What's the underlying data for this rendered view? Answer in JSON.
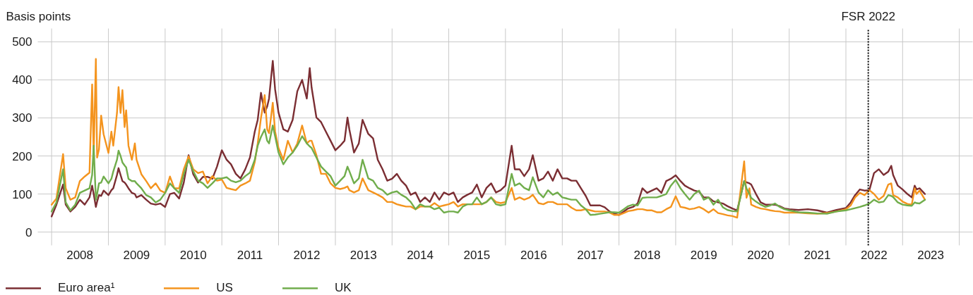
{
  "chart_data": {
    "type": "line",
    "ylabel": "Basis points",
    "x": [
      "2008-01-01",
      "2008-02-01",
      "2008-03-15",
      "2008-04-01",
      "2008-05-01",
      "2008-06-01",
      "2008-07-01",
      "2008-08-01",
      "2008-09-01",
      "2008-09-18",
      "2008-09-28",
      "2008-10-12",
      "2008-10-20",
      "2008-11-01",
      "2008-11-15",
      "2008-12-01",
      "2009-01-01",
      "2009-01-20",
      "2009-02-01",
      "2009-02-25",
      "2009-03-07",
      "2009-03-20",
      "2009-04-01",
      "2009-04-15",
      "2009-04-25",
      "2009-05-10",
      "2009-06-01",
      "2009-06-20",
      "2009-07-01",
      "2009-08-01",
      "2009-09-01",
      "2009-10-01",
      "2009-11-01",
      "2009-12-01",
      "2010-01-01",
      "2010-02-01",
      "2010-03-01",
      "2010-04-01",
      "2010-05-01",
      "2010-06-01",
      "2010-07-01",
      "2010-08-01",
      "2010-09-01",
      "2010-10-01",
      "2010-11-01",
      "2010-12-01",
      "2011-01-01",
      "2011-02-01",
      "2011-03-01",
      "2011-04-01",
      "2011-05-01",
      "2011-06-01",
      "2011-07-01",
      "2011-08-01",
      "2011-08-20",
      "2011-09-10",
      "2011-10-04",
      "2011-10-20",
      "2011-11-01",
      "2011-11-25",
      "2011-12-10",
      "2012-01-01",
      "2012-02-01",
      "2012-03-01",
      "2012-04-01",
      "2012-05-01",
      "2012-06-01",
      "2012-07-01",
      "2012-07-20",
      "2012-08-01",
      "2012-09-01",
      "2012-10-01",
      "2012-11-01",
      "2012-12-01",
      "2013-01-01",
      "2013-02-01",
      "2013-03-01",
      "2013-03-20",
      "2013-04-01",
      "2013-05-01",
      "2013-06-01",
      "2013-06-25",
      "2013-08-01",
      "2013-09-01",
      "2013-10-01",
      "2013-11-01",
      "2013-12-01",
      "2014-01-01",
      "2014-02-01",
      "2014-03-01",
      "2014-04-01",
      "2014-05-01",
      "2014-06-01",
      "2014-07-01",
      "2014-08-01",
      "2014-09-01",
      "2014-10-01",
      "2014-11-01",
      "2014-12-01",
      "2015-01-01",
      "2015-02-01",
      "2015-03-01",
      "2015-04-01",
      "2015-05-01",
      "2015-06-01",
      "2015-07-01",
      "2015-08-01",
      "2015-09-01",
      "2015-10-01",
      "2015-11-01",
      "2015-12-01",
      "2016-01-01",
      "2016-02-10",
      "2016-03-01",
      "2016-04-01",
      "2016-05-01",
      "2016-06-01",
      "2016-06-25",
      "2016-08-01",
      "2016-09-01",
      "2016-10-01",
      "2016-11-01",
      "2016-12-01",
      "2017-01-01",
      "2017-02-01",
      "2017-03-01",
      "2017-04-01",
      "2017-05-01",
      "2017-06-01",
      "2017-07-01",
      "2017-08-01",
      "2017-09-01",
      "2017-10-01",
      "2017-11-01",
      "2017-12-01",
      "2018-01-01",
      "2018-02-01",
      "2018-03-01",
      "2018-04-01",
      "2018-05-01",
      "2018-06-01",
      "2018-07-01",
      "2018-08-01",
      "2018-09-01",
      "2018-10-01",
      "2018-11-01",
      "2018-12-01",
      "2019-01-01",
      "2019-02-01",
      "2019-03-01",
      "2019-04-01",
      "2019-05-01",
      "2019-06-01",
      "2019-07-01",
      "2019-08-01",
      "2019-09-01",
      "2019-10-01",
      "2019-11-01",
      "2019-12-01",
      "2020-01-01",
      "2020-02-01",
      "2020-03-17",
      "2020-04-01",
      "2020-04-20",
      "2020-05-01",
      "2020-06-01",
      "2020-07-01",
      "2020-08-01",
      "2020-09-01",
      "2020-10-01",
      "2020-11-01",
      "2020-12-01",
      "2021-01-01",
      "2021-03-01",
      "2021-05-01",
      "2021-07-01",
      "2021-09-01",
      "2021-11-01",
      "2022-01-01",
      "2022-02-01",
      "2022-03-01",
      "2022-04-01",
      "2022-05-01",
      "2022-06-01",
      "2022-07-01",
      "2022-08-01",
      "2022-09-01",
      "2022-10-01",
      "2022-10-20",
      "2022-11-01",
      "2022-12-01",
      "2023-01-01",
      "2023-02-01",
      "2023-03-01",
      "2023-03-20",
      "2023-04-01",
      "2023-04-20",
      "2023-05-25"
    ],
    "xlim": [
      "2007-10-04",
      "2024-03-27"
    ],
    "xticks": [
      {
        "value": "2008-01-01",
        "label": null
      },
      {
        "value": "2008-07-01",
        "label": "2008"
      },
      {
        "value": "2009-01-01",
        "label": null
      },
      {
        "value": "2009-07-01",
        "label": "2009"
      },
      {
        "value": "2010-01-01",
        "label": null
      },
      {
        "value": "2010-07-01",
        "label": "2010"
      },
      {
        "value": "2011-01-01",
        "label": null
      },
      {
        "value": "2011-07-01",
        "label": "2011"
      },
      {
        "value": "2012-01-01",
        "label": null
      },
      {
        "value": "2012-07-01",
        "label": "2012"
      },
      {
        "value": "2013-01-01",
        "label": null
      },
      {
        "value": "2013-07-01",
        "label": "2013"
      },
      {
        "value": "2014-01-01",
        "label": null
      },
      {
        "value": "2014-07-01",
        "label": "2014"
      },
      {
        "value": "2015-01-01",
        "label": null
      },
      {
        "value": "2015-07-01",
        "label": "2015"
      },
      {
        "value": "2016-01-01",
        "label": null
      },
      {
        "value": "2016-07-01",
        "label": "2016"
      },
      {
        "value": "2017-01-01",
        "label": null
      },
      {
        "value": "2017-07-01",
        "label": "2017"
      },
      {
        "value": "2018-01-01",
        "label": null
      },
      {
        "value": "2018-07-01",
        "label": "2018"
      },
      {
        "value": "2019-01-01",
        "label": null
      },
      {
        "value": "2019-07-01",
        "label": "2019"
      },
      {
        "value": "2020-01-01",
        "label": null
      },
      {
        "value": "2020-07-01",
        "label": "2020"
      },
      {
        "value": "2021-01-01",
        "label": null
      },
      {
        "value": "2021-07-01",
        "label": "2021"
      },
      {
        "value": "2022-01-01",
        "label": null
      },
      {
        "value": "2022-07-01",
        "label": "2022"
      },
      {
        "value": "2023-01-01",
        "label": null
      },
      {
        "value": "2023-07-01",
        "label": "2023"
      },
      {
        "value": "2024-01-01",
        "label": null
      }
    ],
    "ylim": [
      -35,
      535
    ],
    "yticks": [
      0,
      100,
      200,
      300,
      400,
      500
    ],
    "grid": true,
    "legend": "bottom",
    "ref_lines": [
      {
        "axis": "x",
        "value": "2022-05-25",
        "label": "FSR 2022",
        "color": "#000000",
        "line_style": "dotted"
      }
    ],
    "series": [
      {
        "name": "Euro area¹",
        "color": "#7b2e33",
        "values": [
          41,
          72,
          125,
          72,
          54,
          66,
          85,
          72,
          91,
          122,
          100,
          66,
          80,
          97,
          95,
          109,
          97,
          110,
          115,
          150,
          168,
          150,
          134,
          130,
          125,
          115,
          103,
          100,
          91,
          97,
          85,
          75,
          72,
          75,
          66,
          100,
          103,
          88,
          130,
          202,
          152,
          130,
          145,
          145,
          140,
          172,
          215,
          190,
          178,
          153,
          141,
          165,
          196,
          264,
          295,
          366,
          314,
          330,
          351,
          450,
          375,
          314,
          270,
          264,
          295,
          370,
          400,
          351,
          431,
          380,
          301,
          289,
          264,
          240,
          215,
          227,
          240,
          301,
          270,
          209,
          233,
          295,
          258,
          246,
          190,
          165,
          135,
          140,
          153,
          135,
          122,
          98,
          104,
          79,
          91,
          79,
          104,
          85,
          104,
          98,
          104,
          79,
          91,
          98,
          104,
          125,
          91,
          116,
          128,
          104,
          110,
          122,
          227,
          165,
          165,
          147,
          165,
          202,
          135,
          141,
          159,
          135,
          165,
          141,
          141,
          135,
          135,
          115,
          95,
          70,
          70,
          70,
          65,
          54,
          48,
          45,
          54,
          62,
          66,
          75,
          115,
          103,
          109,
          115,
          103,
          134,
          140,
          149,
          134,
          122,
          115,
          109,
          106,
          91,
          91,
          81,
          78,
          75,
          68,
          62,
          57,
          134,
          131,
          128,
          125,
          100,
          78,
          72,
          72,
          72,
          68,
          62,
          60,
          58,
          60,
          57,
          51,
          58,
          63,
          78,
          97,
          112,
          109,
          110,
          155,
          165,
          150,
          159,
          174,
          150,
          122,
          112,
          100,
          91,
          122,
          112,
          115,
          100
        ]
      },
      {
        "name": "US",
        "color": "#f4941e",
        "values": [
          72,
          88,
          205,
          115,
          85,
          91,
          134,
          146,
          156,
          388,
          202,
          455,
          196,
          217,
          306,
          257,
          208,
          264,
          227,
          313,
          381,
          313,
          373,
          276,
          320,
          227,
          190,
          233,
          190,
          152,
          134,
          115,
          128,
          109,
          103,
          146,
          115,
          115,
          165,
          199,
          165,
          155,
          159,
          128,
          147,
          135,
          138,
          116,
          113,
          110,
          122,
          128,
          135,
          184,
          233,
          300,
          360,
          270,
          260,
          340,
          264,
          221,
          190,
          240,
          209,
          233,
          280,
          233,
          240,
          240,
          202,
          153,
          153,
          128,
          116,
          113,
          116,
          120,
          110,
          104,
          110,
          141,
          110,
          104,
          98,
          91,
          79,
          79,
          73,
          70,
          67,
          67,
          60,
          67,
          67,
          67,
          76,
          67,
          70,
          73,
          79,
          67,
          73,
          73,
          73,
          73,
          73,
          79,
          91,
          79,
          76,
          79,
          116,
          85,
          91,
          85,
          90,
          98,
          76,
          73,
          79,
          79,
          73,
          73,
          73,
          64,
          57,
          57,
          60,
          57,
          54,
          54,
          54,
          51,
          45,
          45,
          50,
          55,
          57,
          60,
          60,
          57,
          57,
          52,
          52,
          60,
          66,
          94,
          66,
          64,
          60,
          62,
          66,
          60,
          51,
          60,
          50,
          47,
          44,
          42,
          38,
          186,
          90,
          115,
          72,
          66,
          62,
          60,
          57,
          55,
          54,
          51,
          51,
          51,
          49,
          48,
          50,
          54,
          60,
          70,
          91,
          103,
          97,
          110,
          100,
          85,
          95,
          125,
          128,
          97,
          91,
          80,
          74,
          72,
          115,
          100,
          109,
          85
        ]
      },
      {
        "name": "UK",
        "color": "#70ad4c",
        "values": [
          54,
          78,
          165,
          78,
          57,
          72,
          103,
          109,
          115,
          150,
          227,
          85,
          100,
          128,
          130,
          146,
          128,
          140,
          159,
          190,
          214,
          200,
          183,
          175,
          170,
          140,
          134,
          134,
          128,
          115,
          97,
          91,
          78,
          85,
          103,
          128,
          115,
          103,
          152,
          190,
          160,
          135,
          128,
          116,
          128,
          141,
          141,
          144,
          135,
          131,
          135,
          147,
          156,
          190,
          227,
          250,
          270,
          240,
          233,
          280,
          252,
          209,
          178,
          196,
          209,
          227,
          252,
          233,
          225,
          221,
          196,
          172,
          159,
          147,
          122,
          135,
          147,
          172,
          160,
          128,
          141,
          190,
          141,
          135,
          116,
          110,
          98,
          104,
          107,
          98,
          91,
          79,
          60,
          73,
          67,
          67,
          60,
          64,
          51,
          54,
          54,
          51,
          67,
          73,
          73,
          91,
          73,
          79,
          91,
          73,
          70,
          73,
          153,
          122,
          128,
          116,
          110,
          144,
          104,
          91,
          110,
          98,
          104,
          91,
          88,
          85,
          85,
          70,
          60,
          45,
          46,
          48,
          50,
          52,
          52,
          51,
          60,
          68,
          72,
          70,
          90,
          91,
          91,
          91,
          95,
          100,
          122,
          137,
          115,
          100,
          85,
          100,
          109,
          85,
          91,
          72,
          85,
          65,
          58,
          55,
          54,
          134,
          115,
          100,
          90,
          80,
          72,
          66,
          70,
          75,
          66,
          60,
          57,
          52,
          51,
          49,
          48,
          54,
          57,
          60,
          63,
          66,
          70,
          75,
          85,
          78,
          80,
          97,
          95,
          92,
          78,
          72,
          70,
          69,
          78,
          76,
          75,
          85
        ]
      }
    ]
  }
}
